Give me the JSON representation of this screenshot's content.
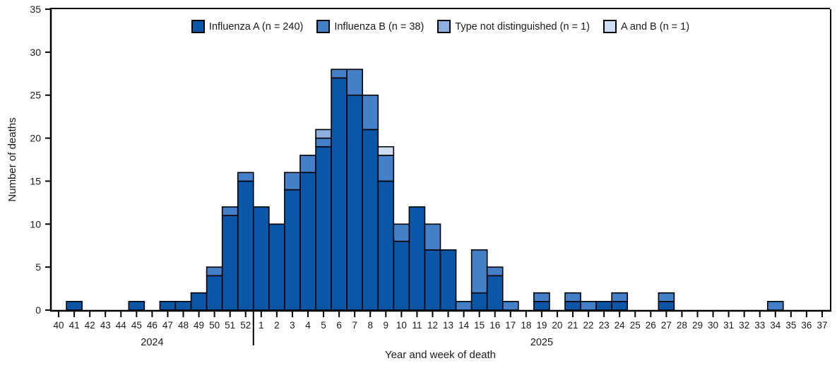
{
  "chart_data": {
    "type": "bar",
    "stacked": true,
    "grid": false,
    "legend_position": "top-center",
    "xlabel": "Year and week of death",
    "ylabel": "Number of deaths",
    "ylim": [
      0,
      35
    ],
    "ytick_step": 5,
    "categories": [
      "40",
      "41",
      "42",
      "43",
      "44",
      "45",
      "46",
      "47",
      "48",
      "49",
      "50",
      "51",
      "52",
      "1",
      "2",
      "3",
      "4",
      "5",
      "6",
      "7",
      "8",
      "9",
      "10",
      "11",
      "12",
      "13",
      "14",
      "15",
      "16",
      "17",
      "18",
      "19",
      "20",
      "21",
      "22",
      "23",
      "24",
      "25",
      "26",
      "27",
      "28",
      "29",
      "30",
      "31",
      "32",
      "33",
      "34",
      "35",
      "36",
      "37"
    ],
    "year_groups": [
      {
        "label": "2024",
        "start_index": 0,
        "end_index": 12
      },
      {
        "label": "2025",
        "start_index": 13,
        "end_index": 49
      }
    ],
    "series": [
      {
        "name": "Influenza A (n = 240)",
        "key": "influenza-a",
        "color": "#0b56a6",
        "values": [
          0,
          1,
          0,
          0,
          0,
          1,
          0,
          1,
          1,
          2,
          4,
          11,
          15,
          12,
          10,
          14,
          16,
          19,
          27,
          25,
          21,
          15,
          8,
          12,
          7,
          7,
          0,
          2,
          4,
          0,
          0,
          1,
          0,
          1,
          0,
          1,
          1,
          0,
          0,
          1,
          0,
          0,
          0,
          0,
          0,
          0,
          0,
          0,
          0,
          0
        ]
      },
      {
        "name": "Influenza B (n = 38)",
        "key": "influenza-b",
        "color": "#447fc8",
        "values": [
          0,
          0,
          0,
          0,
          0,
          0,
          0,
          0,
          0,
          0,
          1,
          1,
          1,
          0,
          0,
          2,
          2,
          1,
          1,
          3,
          4,
          3,
          2,
          0,
          3,
          0,
          1,
          5,
          1,
          1,
          0,
          1,
          0,
          1,
          1,
          0,
          1,
          0,
          0,
          1,
          0,
          0,
          0,
          0,
          0,
          0,
          1,
          0,
          0,
          0
        ]
      },
      {
        "name": "Type not distinguished (n = 1)",
        "key": "type-not-distinguished",
        "color": "#8cafe0",
        "values": [
          0,
          0,
          0,
          0,
          0,
          0,
          0,
          0,
          0,
          0,
          0,
          0,
          0,
          0,
          0,
          0,
          0,
          1,
          0,
          0,
          0,
          0,
          0,
          0,
          0,
          0,
          0,
          0,
          0,
          0,
          0,
          0,
          0,
          0,
          0,
          0,
          0,
          0,
          0,
          0,
          0,
          0,
          0,
          0,
          0,
          0,
          0,
          0,
          0,
          0
        ]
      },
      {
        "name": "A and B (n = 1)",
        "key": "a-and-b",
        "color": "#cddef2",
        "values": [
          0,
          0,
          0,
          0,
          0,
          0,
          0,
          0,
          0,
          0,
          0,
          0,
          0,
          0,
          0,
          0,
          0,
          0,
          0,
          0,
          0,
          1,
          0,
          0,
          0,
          0,
          0,
          0,
          0,
          0,
          0,
          0,
          0,
          0,
          0,
          0,
          0,
          0,
          0,
          0,
          0,
          0,
          0,
          0,
          0,
          0,
          0,
          0,
          0,
          0
        ]
      }
    ]
  },
  "colors": {
    "axis": "#000000",
    "bar_border": "#000000",
    "text": "#1a1a1a",
    "background": "#ffffff"
  }
}
